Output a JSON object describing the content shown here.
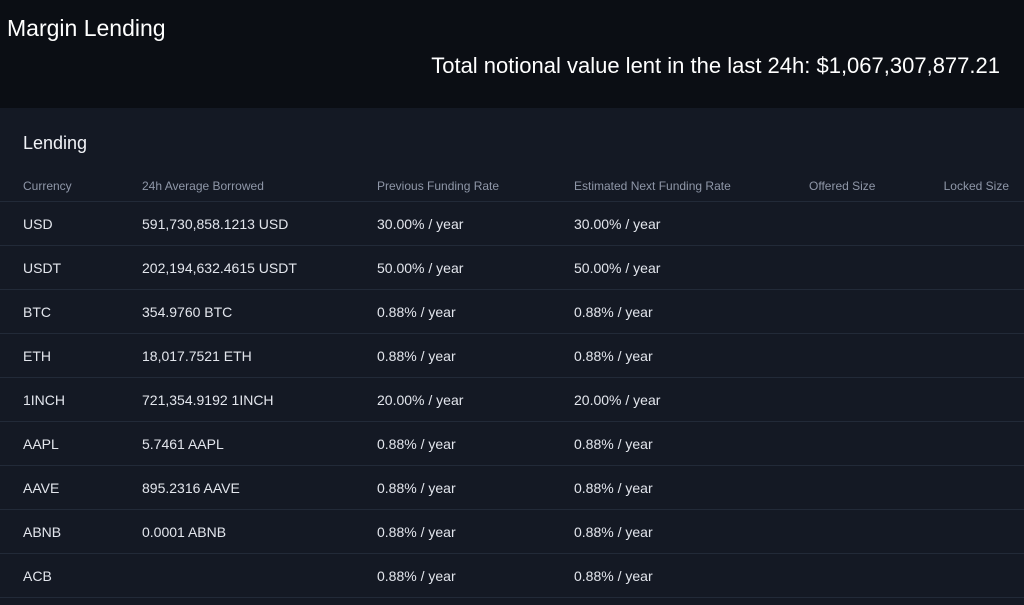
{
  "header": {
    "title": "Margin Lending",
    "total_line": "Total notional value lent in the last 24h: $1,067,307,877.21"
  },
  "lending": {
    "title": "Lending",
    "columns": [
      "Currency",
      "24h Average Borrowed",
      "Previous Funding Rate",
      "Estimated Next Funding Rate",
      "Offered Size",
      "Locked Size"
    ],
    "rows": [
      {
        "currency": "USD",
        "avg_borrowed": "591,730,858.1213 USD",
        "prev_rate": "30.00% / year",
        "next_rate": "30.00% / year",
        "offered": "",
        "locked": ""
      },
      {
        "currency": "USDT",
        "avg_borrowed": "202,194,632.4615 USDT",
        "prev_rate": "50.00% / year",
        "next_rate": "50.00% / year",
        "offered": "",
        "locked": ""
      },
      {
        "currency": "BTC",
        "avg_borrowed": "354.9760 BTC",
        "prev_rate": "0.88% / year",
        "next_rate": "0.88% / year",
        "offered": "",
        "locked": ""
      },
      {
        "currency": "ETH",
        "avg_borrowed": "18,017.7521 ETH",
        "prev_rate": "0.88% / year",
        "next_rate": "0.88% / year",
        "offered": "",
        "locked": ""
      },
      {
        "currency": "1INCH",
        "avg_borrowed": "721,354.9192 1INCH",
        "prev_rate": "20.00% / year",
        "next_rate": "20.00% / year",
        "offered": "",
        "locked": ""
      },
      {
        "currency": "AAPL",
        "avg_borrowed": "5.7461 AAPL",
        "prev_rate": "0.88% / year",
        "next_rate": "0.88% / year",
        "offered": "",
        "locked": ""
      },
      {
        "currency": "AAVE",
        "avg_borrowed": "895.2316 AAVE",
        "prev_rate": "0.88% / year",
        "next_rate": "0.88% / year",
        "offered": "",
        "locked": ""
      },
      {
        "currency": "ABNB",
        "avg_borrowed": "0.0001 ABNB",
        "prev_rate": "0.88% / year",
        "next_rate": "0.88% / year",
        "offered": "",
        "locked": ""
      },
      {
        "currency": "ACB",
        "avg_borrowed": "",
        "prev_rate": "0.88% / year",
        "next_rate": "0.88% / year",
        "offered": "",
        "locked": ""
      }
    ]
  }
}
